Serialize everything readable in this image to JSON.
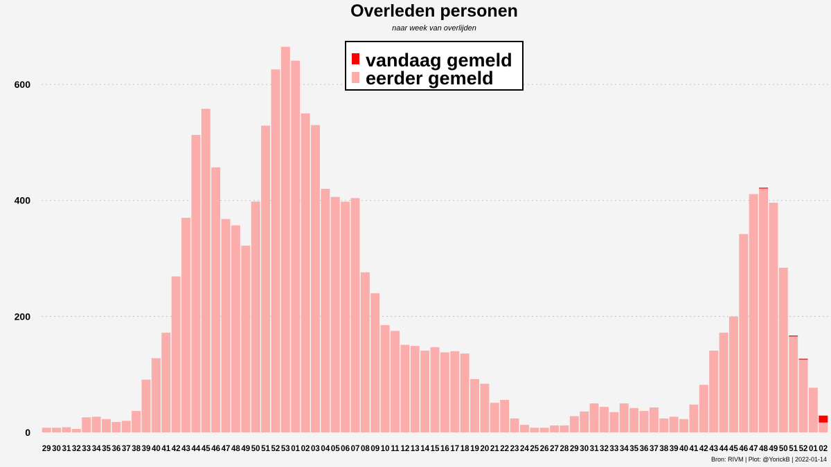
{
  "chart_data": {
    "type": "bar",
    "title": "Overleden personen",
    "subtitle": "naar week van overlijden",
    "caption": "Bron: RIVM | Plot: @YorickB |  2022-01-14",
    "xlabel": "",
    "ylabel": "",
    "ylim": [
      0,
      680
    ],
    "yticks": [
      0,
      200,
      400,
      600
    ],
    "grid": true,
    "legend_position": "top-center",
    "categories": [
      "29",
      "30",
      "31",
      "32",
      "33",
      "34",
      "35",
      "36",
      "37",
      "38",
      "39",
      "40",
      "41",
      "42",
      "43",
      "44",
      "45",
      "46",
      "47",
      "48",
      "49",
      "50",
      "51",
      "52",
      "53",
      "01",
      "02",
      "03",
      "04",
      "05",
      "06",
      "07",
      "08",
      "09",
      "10",
      "11",
      "12",
      "13",
      "14",
      "15",
      "16",
      "17",
      "18",
      "19",
      "20",
      "21",
      "22",
      "23",
      "24",
      "25",
      "26",
      "27",
      "28",
      "29",
      "30",
      "31",
      "32",
      "33",
      "34",
      "35",
      "36",
      "37",
      "38",
      "39",
      "40",
      "41",
      "42",
      "43",
      "44",
      "45",
      "46",
      "47",
      "48",
      "49",
      "50",
      "51",
      "52",
      "01",
      "02"
    ],
    "series": [
      {
        "name": "eerder gemeld",
        "color": "#fbadab",
        "values": [
          8,
          8,
          9,
          6,
          26,
          27,
          23,
          18,
          20,
          37,
          91,
          128,
          172,
          269,
          370,
          513,
          558,
          457,
          368,
          357,
          322,
          398,
          529,
          626,
          665,
          641,
          550,
          530,
          420,
          406,
          398,
          404,
          276,
          240,
          185,
          175,
          151,
          149,
          141,
          147,
          138,
          140,
          136,
          92,
          84,
          51,
          56,
          24,
          13,
          8,
          8,
          12,
          12,
          28,
          36,
          50,
          44,
          35,
          50,
          42,
          37,
          43,
          24,
          27,
          23,
          48,
          82,
          141,
          172,
          200,
          342,
          411,
          421,
          396,
          284,
          166,
          126,
          77,
          17
        ]
      },
      {
        "name": "vandaag gemeld",
        "color": "#fb0000",
        "values": [
          0,
          0,
          0,
          0,
          0,
          0,
          0,
          0,
          0,
          0,
          0,
          0,
          0,
          0,
          0,
          0,
          0,
          0,
          0,
          0,
          0,
          0,
          0,
          0,
          0,
          0,
          0,
          0,
          0,
          0,
          0,
          0,
          0,
          0,
          0,
          0,
          0,
          0,
          0,
          0,
          0,
          0,
          0,
          0,
          0,
          0,
          0,
          0,
          0,
          0,
          0,
          0,
          0,
          0,
          0,
          0,
          0,
          0,
          0,
          0,
          0,
          0,
          0,
          0,
          0,
          0,
          0,
          0,
          0,
          0,
          0,
          0,
          1,
          0,
          0,
          1,
          1,
          0,
          12
        ]
      }
    ],
    "legend": [
      {
        "label": "vandaag gemeld",
        "color": "#fb0000"
      },
      {
        "label": "eerder gemeld",
        "color": "#fbadab"
      }
    ]
  }
}
